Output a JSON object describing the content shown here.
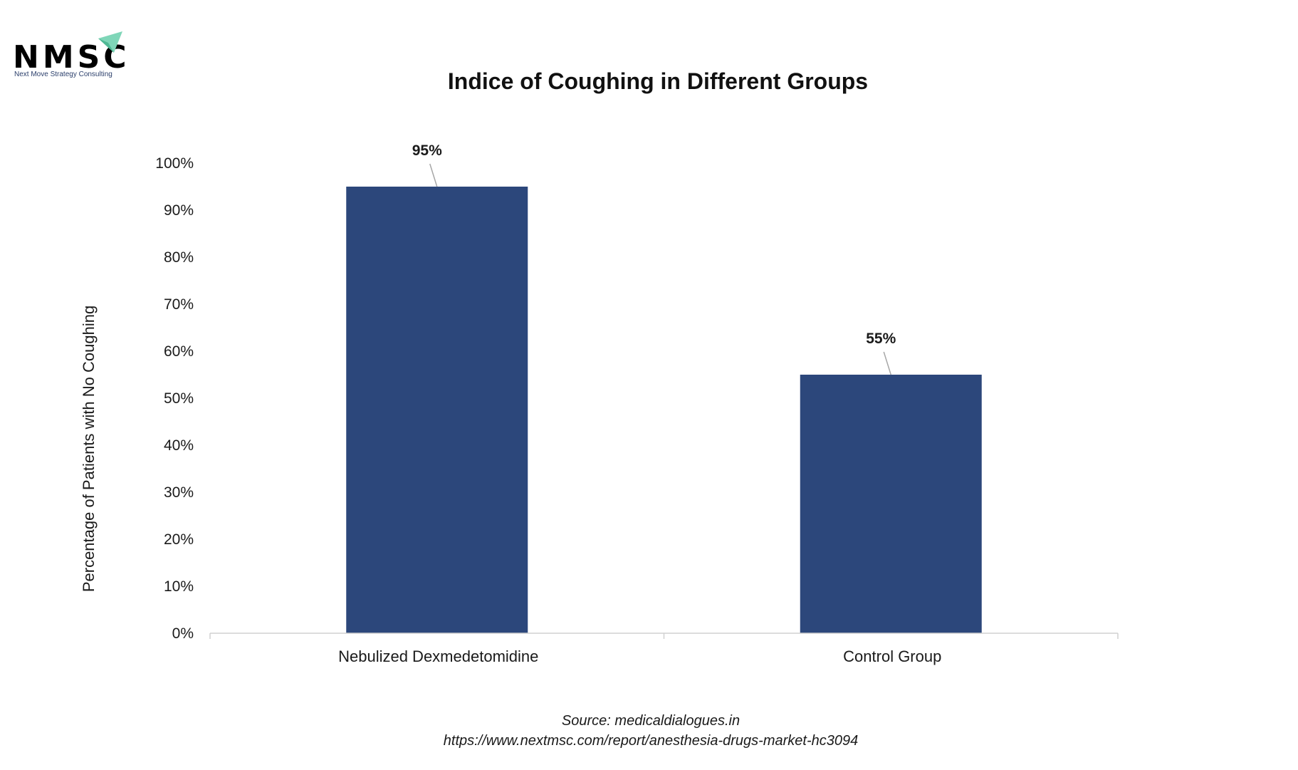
{
  "logo": {
    "text": "NMSC",
    "tagline": "Next Move Strategy Consulting",
    "icon": "paper-plane-icon",
    "text_color": "#2b3f6b",
    "icon_color": "#7fd6b8"
  },
  "source": {
    "line1": "Source: medicaldialogues.in",
    "line2": "https://www.nextmsc.com/report/anesthesia-drugs-market-hc3094"
  },
  "chart_data": {
    "type": "bar",
    "title": "Indice of Coughing in Different Groups",
    "xlabel": "",
    "ylabel": "Percentage of Patients with No Coughing",
    "categories": [
      "Nebulized Dexmedetomidine",
      "Control Group"
    ],
    "values": [
      95,
      55
    ],
    "value_labels": [
      "95%",
      "55%"
    ],
    "ylim": [
      0,
      100
    ],
    "yticks": [
      "0%",
      "10%",
      "20%",
      "30%",
      "40%",
      "50%",
      "60%",
      "70%",
      "80%",
      "90%",
      "100%"
    ],
    "bar_color": "#2c477b",
    "grid": false,
    "legend": "none"
  }
}
